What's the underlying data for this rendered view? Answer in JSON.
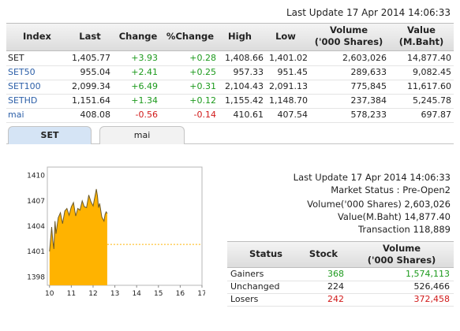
{
  "top_update": "Last Update 17 Apr 2014 14:06:33",
  "table": {
    "headers": [
      "Index",
      "Last",
      "Change",
      "%Change",
      "High",
      "Low",
      "Volume",
      "('000 Shares)",
      "Value",
      "(M.Baht)"
    ],
    "rows": [
      {
        "index": "SET",
        "last": "1,405.77",
        "change": "+3.93",
        "pct": "+0.28",
        "high": "1,408.66",
        "low": "1,401.02",
        "volume": "2,603,026",
        "value": "14,877.40",
        "dir": "up"
      },
      {
        "index": "SET50",
        "last": "955.04",
        "change": "+2.41",
        "pct": "+0.25",
        "high": "957.33",
        "low": "951.45",
        "volume": "289,633",
        "value": "9,082.45",
        "dir": "up"
      },
      {
        "index": "SET100",
        "last": "2,099.34",
        "change": "+6.49",
        "pct": "+0.31",
        "high": "2,104.43",
        "low": "2,091.13",
        "volume": "775,845",
        "value": "11,617.60",
        "dir": "up"
      },
      {
        "index": "SETHD",
        "last": "1,151.64",
        "change": "+1.34",
        "pct": "+0.12",
        "high": "1,155.42",
        "low": "1,148.70",
        "volume": "237,384",
        "value": "5,245.78",
        "dir": "up"
      },
      {
        "index": "mai",
        "last": "408.08",
        "change": "-0.56",
        "pct": "-0.14",
        "high": "410.61",
        "low": "407.54",
        "volume": "578,233",
        "value": "697.87",
        "dir": "down"
      }
    ]
  },
  "tabs": [
    {
      "label": "SET",
      "active": true
    },
    {
      "label": "mai",
      "active": false
    }
  ],
  "market_info": {
    "update": "Last Update 17 Apr 2014 14:06:33",
    "status": "Market Status : Pre-Open2",
    "volume": "Volume('000 Shares) 2,603,026",
    "value": "Value(M.Baht) 14,877.40",
    "transaction": "Transaction 118,889"
  },
  "status_table": {
    "headers": [
      "Status",
      "Stock",
      "Volume",
      "('000 Shares)"
    ],
    "rows": [
      {
        "status": "Gainers",
        "stock": "368",
        "volume": "1,574,113",
        "color": "#1d9a1d"
      },
      {
        "status": "Unchanged",
        "stock": "224",
        "volume": "526,466",
        "color": "#222222"
      },
      {
        "status": "Losers",
        "stock": "242",
        "volume": "372,458",
        "color": "#d11a1a"
      }
    ]
  },
  "chart_data": {
    "type": "area",
    "ylim": [
      1397,
      1411
    ],
    "xlim": [
      9.9,
      17
    ],
    "y_ticks": [
      1398,
      1401,
      1404,
      1407,
      1410
    ],
    "x_ticks": [
      10,
      11,
      12,
      13,
      14,
      15,
      16,
      17
    ],
    "previous_close": 1401.84,
    "fill_color": "#ffb300",
    "series": [
      {
        "x": [
          10.0,
          10.1,
          10.15,
          10.2,
          10.25,
          10.3,
          10.4,
          10.5,
          10.6,
          10.7,
          10.8,
          10.9,
          11.0,
          11.1,
          11.2,
          11.3,
          11.4,
          11.5,
          11.6,
          11.7,
          11.8,
          11.9,
          12.0,
          12.1,
          12.15,
          12.2,
          12.25,
          12.3,
          12.4,
          12.5,
          12.55,
          12.6,
          12.65
        ],
        "y": [
          1401.0,
          1403.9,
          1402.3,
          1401.3,
          1404.6,
          1403.1,
          1405.0,
          1405.6,
          1404.3,
          1405.8,
          1406.1,
          1405.3,
          1406.3,
          1406.8,
          1405.2,
          1406.1,
          1405.9,
          1407.0,
          1406.3,
          1406.2,
          1407.7,
          1406.9,
          1406.4,
          1407.7,
          1408.4,
          1407.6,
          1406.2,
          1406.7,
          1405.1,
          1404.6,
          1405.4,
          1405.7,
          1405.5
        ]
      }
    ]
  }
}
